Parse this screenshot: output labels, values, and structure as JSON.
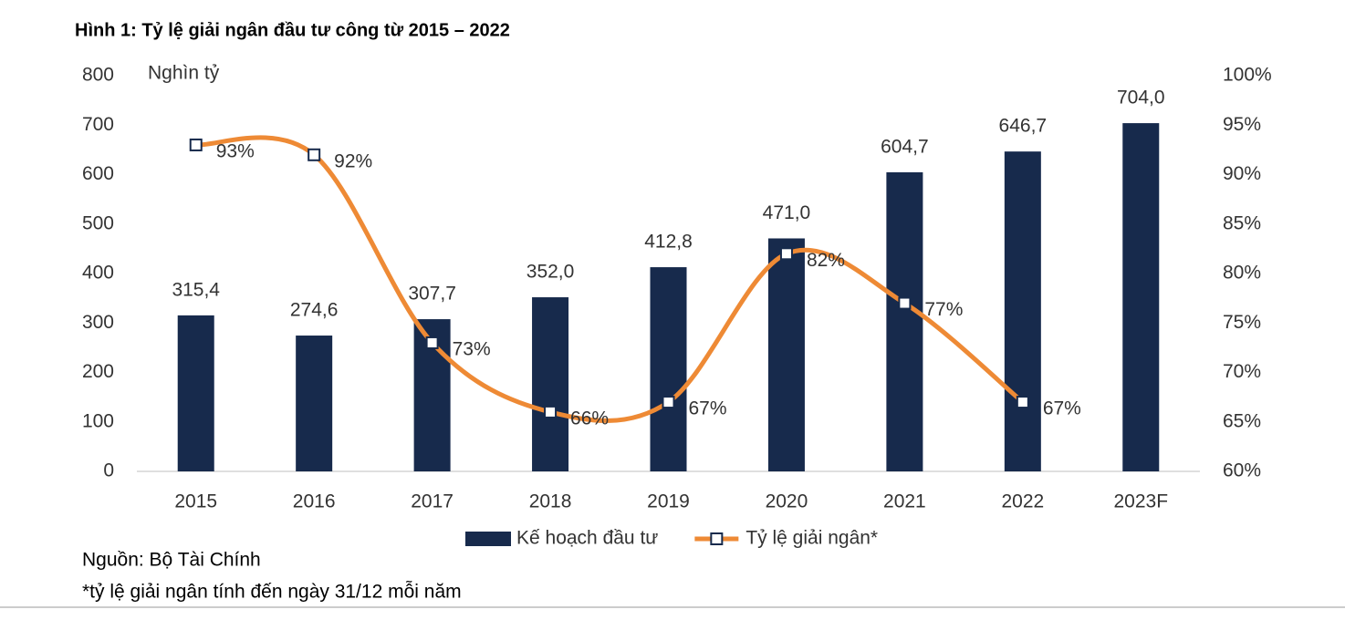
{
  "chart_data": {
    "type": "bar_line",
    "title": "Hình 1: Tỷ lệ giải ngân đầu tư công từ 2015 – 2022",
    "y_label": "Nghìn tỷ",
    "source": "Nguồn: Bộ Tài Chính",
    "note": "*tỷ lệ giải ngân tính đến ngày 31/12 mỗi năm",
    "categories": [
      "2015",
      "2016",
      "2017",
      "2018",
      "2019",
      "2020",
      "2021",
      "2022",
      "2023F"
    ],
    "series": [
      {
        "name": "Kế hoạch đầu tư",
        "type": "bar",
        "color": "#172a4c",
        "values": [
          315.4,
          274.6,
          307.7,
          352.0,
          412.8,
          471.0,
          604.7,
          646.7,
          704.0
        ],
        "value_labels": [
          "315,4",
          "274,6",
          "307,7",
          "352,0",
          "412,8",
          "471,0",
          "604,7",
          "646,7",
          "704,0"
        ]
      },
      {
        "name": "Tỷ lệ giải ngân*",
        "type": "line",
        "axis": "y2",
        "color": "#ee8a35",
        "smooth": true,
        "values": [
          93,
          92,
          73,
          66,
          67,
          82,
          77,
          67,
          null
        ],
        "value_labels": [
          "93%",
          "92%",
          "73%",
          "66%",
          "67%",
          "82%",
          "77%",
          "67%",
          null
        ]
      }
    ],
    "ylim": [
      0,
      800
    ],
    "yticks": [
      0,
      100,
      200,
      300,
      400,
      500,
      600,
      700,
      800
    ],
    "y2lim": [
      60,
      100
    ],
    "y2ticks": [
      {
        "value": 60,
        "label": "60%"
      },
      {
        "value": 65,
        "label": "65%"
      },
      {
        "value": 70,
        "label": "70%"
      },
      {
        "value": 75,
        "label": "75%"
      },
      {
        "value": 80,
        "label": "80%"
      },
      {
        "value": 85,
        "label": "85%"
      },
      {
        "value": 90,
        "label": "90%"
      },
      {
        "value": 95,
        "label": "95%"
      },
      {
        "value": 100,
        "label": "100%"
      }
    ],
    "grid": false,
    "legend": "bottom"
  }
}
